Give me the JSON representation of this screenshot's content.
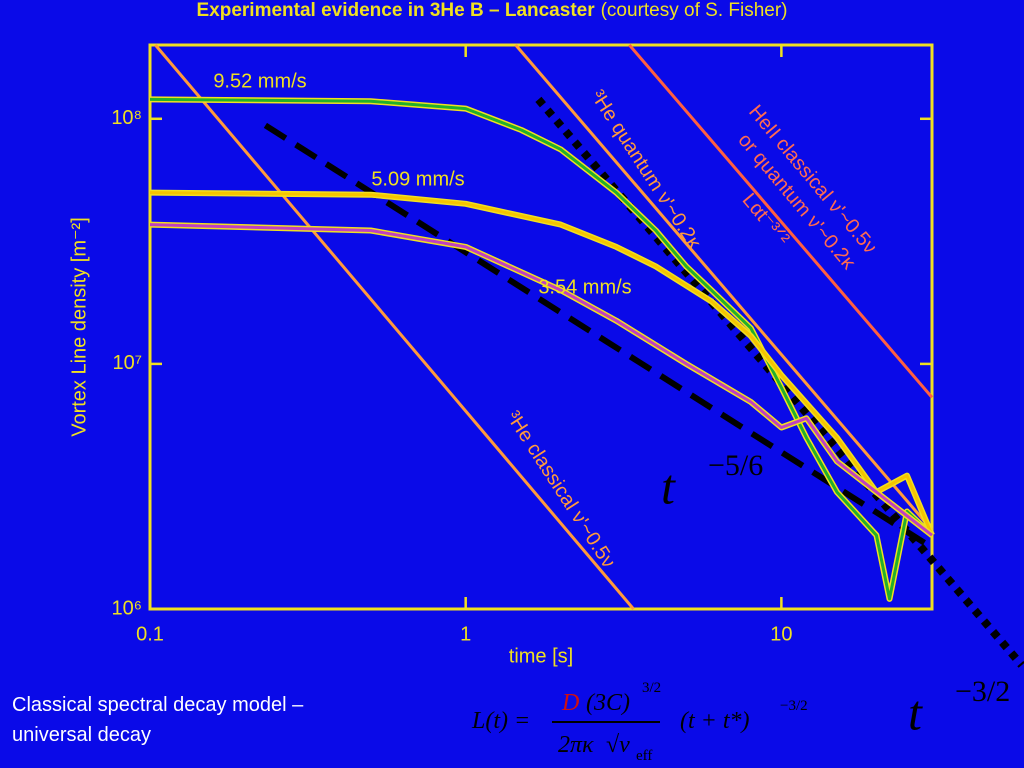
{
  "title": {
    "bold": "Experimental evidence in 3He B – Lancaster",
    "rest": "(courtesy of S. Fisher)"
  },
  "chart_data": {
    "type": "line",
    "xlabel": "time [s]",
    "ylabel": "Vortex Line density [m⁻²]",
    "xscale": "log",
    "yscale": "log",
    "xlim": [
      0.1,
      30
    ],
    "ylim": [
      1000000,
      200000000
    ],
    "xticks": [
      0.1,
      1,
      10
    ],
    "yticks": [
      {
        "value": 1000000,
        "label": "10⁶"
      },
      {
        "value": 10000000,
        "label": "10⁷"
      },
      {
        "value": 100000000,
        "label": "10⁸"
      }
    ],
    "frame_color": "#f0e020",
    "series": [
      {
        "name": "9.52 mm/s",
        "color": "#22b02a",
        "x": [
          0.1,
          0.5,
          1,
          1.5,
          2,
          3,
          4,
          5,
          6,
          8,
          10,
          12,
          15,
          20,
          22,
          25,
          30
        ],
        "values": [
          120000000,
          118000000,
          110000000,
          90000000,
          75000000,
          50000000,
          35000000,
          25000000,
          20000000,
          14000000,
          8000000,
          5000000,
          3000000,
          2000000,
          1100000,
          2500000,
          2000000
        ]
      },
      {
        "name": "5.09 mm/s",
        "color": "#f5c400",
        "x": [
          0.1,
          0.5,
          1,
          2,
          3,
          4,
          6,
          8,
          10,
          15,
          20,
          25,
          30
        ],
        "values": [
          50000000,
          49000000,
          45000000,
          37000000,
          30000000,
          25000000,
          18000000,
          13000000,
          9000000,
          5000000,
          3000000,
          3500000,
          2000000
        ]
      },
      {
        "name": "3.54 mm/s",
        "color": "#c040c0",
        "x": [
          0.1,
          0.5,
          1,
          2,
          3,
          5,
          8,
          10,
          12,
          15,
          20,
          30
        ],
        "values": [
          37000000,
          35000000,
          30000000,
          20000000,
          15000000,
          10000000,
          7000000,
          5500000,
          6000000,
          4000000,
          3000000,
          2000000
        ]
      }
    ],
    "reference_lines": [
      {
        "color": "#ff9a3c",
        "style": "solid",
        "x": [
          0.104,
          3.4
        ],
        "values": [
          200000000,
          1000000
        ]
      },
      {
        "color": "#ff9a3c",
        "style": "solid",
        "x": [
          1.44,
          30
        ],
        "values": [
          200000000,
          2100000
        ]
      },
      {
        "color": "#ff6040",
        "style": "solid",
        "x": [
          3.3,
          30
        ],
        "values": [
          200000000,
          7300000
        ]
      },
      {
        "color": "#000000",
        "style": "dashed",
        "x": [
          0.232,
          30
        ],
        "values": [
          94000000,
          1780000
        ]
      },
      {
        "color": "#000000",
        "style": "dotted",
        "x": [
          1.7,
          57.7
        ],
        "values": [
          120000000,
          590000
        ]
      }
    ],
    "annotations": [
      {
        "text": "³He quantum ν'~0.2κ"
      },
      {
        "text": "HeII classical ν'~0.5ν"
      },
      {
        "text": "or quantum ν'~0.2κ"
      },
      {
        "text": "Lαt⁻³ᐟ²"
      },
      {
        "text": "³He classical ν'~0.5ν"
      },
      {
        "text": "t",
        "sup": "−5/6"
      },
      {
        "text": "t",
        "sup": "−3/2"
      }
    ]
  },
  "footer": {
    "lines": [
      "Classical spectral decay model –",
      "universal decay"
    ],
    "formula": {
      "lhs": "L(t) =",
      "coef": "D",
      "num": "(3C)",
      "num_exp": "3/2",
      "den": "2πκ",
      "den_root": "√ν",
      "den_sub": "eff",
      "rhs": "(t + t*)",
      "rhs_exp": "−3/2"
    }
  }
}
